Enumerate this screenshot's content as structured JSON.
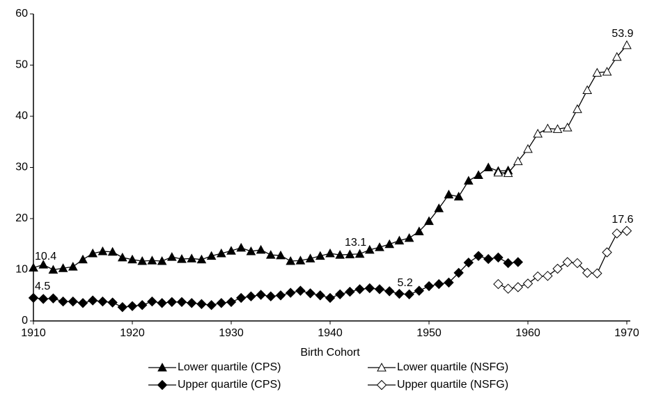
{
  "chart_data": {
    "type": "line",
    "x_label": "Birth Cohort",
    "xlim": [
      1910,
      1970
    ],
    "xticks": [
      1910,
      1920,
      1930,
      1940,
      1950,
      1960,
      1970
    ],
    "ylim": [
      0,
      60
    ],
    "yticks": [
      0,
      10,
      20,
      30,
      40,
      50,
      60
    ],
    "grid": false,
    "legend": "bottom",
    "series": [
      {
        "name": "Lower quartile (CPS)",
        "color": "#000000",
        "marker": "triangle",
        "filled": true,
        "labeled_points": [
          0,
          33
        ],
        "x": [
          1910,
          1911,
          1912,
          1913,
          1914,
          1915,
          1916,
          1917,
          1918,
          1919,
          1920,
          1921,
          1922,
          1923,
          1924,
          1925,
          1926,
          1927,
          1928,
          1929,
          1930,
          1931,
          1932,
          1933,
          1934,
          1935,
          1936,
          1937,
          1938,
          1939,
          1940,
          1941,
          1942,
          1943,
          1944,
          1945,
          1946,
          1947,
          1948,
          1949,
          1950,
          1951,
          1952,
          1953,
          1954,
          1955,
          1956,
          1957,
          1958
        ],
        "values": [
          10.4,
          11,
          10,
          10.3,
          10.6,
          12,
          13.2,
          13.6,
          13.5,
          12.4,
          12,
          11.7,
          11.8,
          11.7,
          12.5,
          12.1,
          12.2,
          12,
          12.7,
          13.2,
          13.7,
          14.3,
          13.6,
          13.9,
          12.9,
          12.8,
          11.7,
          11.8,
          12.2,
          12.7,
          13.2,
          12.9,
          13,
          13.1,
          13.9,
          14.4,
          15,
          15.7,
          16.2,
          17.5,
          19.5,
          22,
          24.7,
          24.3,
          27.4,
          28.5,
          30,
          29.3,
          29.4
        ]
      },
      {
        "name": "Lower quartile (NSFG)",
        "color": "#000000",
        "marker": "triangle",
        "filled": false,
        "labeled_points": [
          13
        ],
        "x": [
          1957,
          1958,
          1959,
          1960,
          1961,
          1962,
          1963,
          1964,
          1965,
          1966,
          1967,
          1968,
          1969,
          1970
        ],
        "values": [
          29,
          28.9,
          31.2,
          33.6,
          36.6,
          37.6,
          37.5,
          37.8,
          41.4,
          45.1,
          48.5,
          48.7,
          51.6,
          53.9
        ]
      },
      {
        "name": "Upper quartile (CPS)",
        "color": "#000000",
        "marker": "diamond",
        "filled": true,
        "labeled_points": [
          0,
          38
        ],
        "x": [
          1910,
          1911,
          1912,
          1913,
          1914,
          1915,
          1916,
          1917,
          1918,
          1919,
          1920,
          1921,
          1922,
          1923,
          1924,
          1925,
          1926,
          1927,
          1928,
          1929,
          1930,
          1931,
          1932,
          1933,
          1934,
          1935,
          1936,
          1937,
          1938,
          1939,
          1940,
          1941,
          1942,
          1943,
          1944,
          1945,
          1946,
          1947,
          1948,
          1949,
          1950,
          1951,
          1952,
          1953,
          1954,
          1955,
          1956,
          1957,
          1958,
          1959
        ],
        "values": [
          4.5,
          4.3,
          4.4,
          3.8,
          3.8,
          3.5,
          4,
          3.8,
          3.6,
          2.7,
          2.9,
          3.1,
          3.8,
          3.5,
          3.7,
          3.7,
          3.5,
          3.3,
          3.1,
          3.5,
          3.7,
          4.5,
          4.8,
          5.1,
          4.8,
          5,
          5.5,
          5.9,
          5.4,
          5,
          4.5,
          5.2,
          5.7,
          6.2,
          6.4,
          6.2,
          5.8,
          5.3,
          5.2,
          5.9,
          6.8,
          7.2,
          7.5,
          9.4,
          11.4,
          12.7,
          12.1,
          12.4,
          11.3,
          11.5
        ]
      },
      {
        "name": "Upper quartile (NSFG)",
        "color": "#000000",
        "marker": "diamond",
        "filled": false,
        "labeled_points": [
          13
        ],
        "x": [
          1957,
          1958,
          1959,
          1960,
          1961,
          1962,
          1963,
          1964,
          1965,
          1966,
          1967,
          1968,
          1969,
          1970
        ],
        "values": [
          7.2,
          6.3,
          6.6,
          7.3,
          8.7,
          8.8,
          10.2,
          11.5,
          11.3,
          9.4,
          9.3,
          13.4,
          17.1,
          17.6
        ]
      }
    ]
  }
}
